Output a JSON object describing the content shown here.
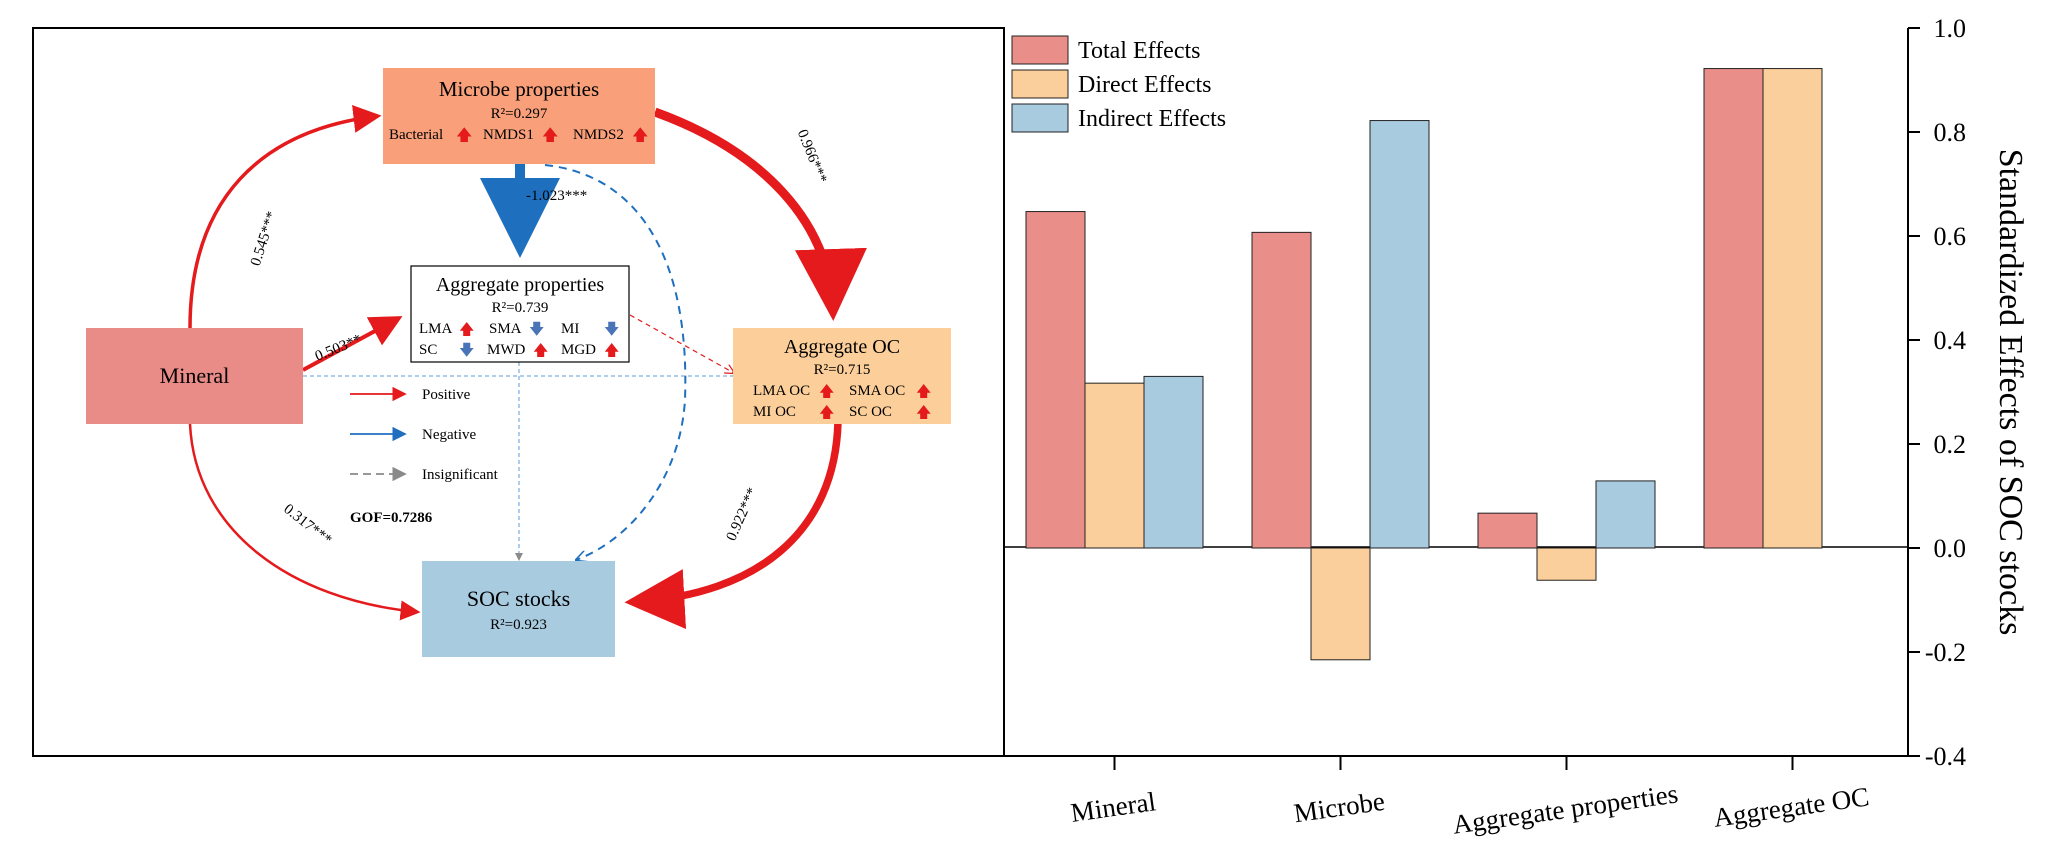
{
  "colors": {
    "positive": "#e41a1c",
    "negative": "#1f6fbf",
    "insignificant": "#8a8a8a",
    "up_arrow": "#e41a1c",
    "down_arrow": "#4a74b8",
    "mineral_box": "#e98b87",
    "microbe_box": "#f9a07a",
    "agg_oc_box": "#fccf9a",
    "soc_box": "#a9cbe0",
    "total": "#ea8e8a",
    "direct": "#fbcf9b",
    "indirect": "#a9cbe0"
  },
  "path_model": {
    "nodes": {
      "mineral": {
        "title": "Mineral"
      },
      "microbe": {
        "title": "Microbe properties",
        "r2": "R²=0.297",
        "vars": [
          {
            "label": "Bacterial",
            "dir": "up"
          },
          {
            "label": "NMDS1",
            "dir": "up"
          },
          {
            "label": "NMDS2",
            "dir": "up"
          }
        ]
      },
      "aggregate": {
        "title": "Aggregate properties",
        "r2": "R²=0.739",
        "vars": [
          {
            "label": "LMA",
            "dir": "up"
          },
          {
            "label": "SMA",
            "dir": "down"
          },
          {
            "label": "MI",
            "dir": "down"
          },
          {
            "label": "SC",
            "dir": "down"
          },
          {
            "label": "MWD",
            "dir": "up"
          },
          {
            "label": "MGD",
            "dir": "up"
          }
        ]
      },
      "agg_oc": {
        "title": "Aggregate OC",
        "r2": "R²=0.715",
        "vars": [
          {
            "label": "LMA OC",
            "dir": "up"
          },
          {
            "label": "SMA OC",
            "dir": "up"
          },
          {
            "label": "MI OC",
            "dir": "up"
          },
          {
            "label": "SC OC",
            "dir": "up"
          }
        ]
      },
      "soc": {
        "title": "SOC stocks",
        "r2": "R²=0.923"
      }
    },
    "paths": [
      {
        "from": "mineral",
        "to": "microbe",
        "coef": "0.545***",
        "sign": "positive"
      },
      {
        "from": "microbe",
        "to": "agg_oc",
        "coef": "0.966***",
        "sign": "positive"
      },
      {
        "from": "microbe",
        "to": "aggregate",
        "coef": "-1.023***",
        "sign": "negative"
      },
      {
        "from": "mineral",
        "to": "aggregate",
        "coef": "0.503**",
        "sign": "positive"
      },
      {
        "from": "agg_oc",
        "to": "soc",
        "coef": "0.922***",
        "sign": "positive"
      },
      {
        "from": "mineral",
        "to": "soc",
        "coef": "0.317***",
        "sign": "positive"
      }
    ],
    "legend": [
      {
        "label": "Positive",
        "kind": "positive"
      },
      {
        "label": "Negative",
        "kind": "negative"
      },
      {
        "label": "Insignificant",
        "kind": "insignificant"
      }
    ],
    "gof": "GOF=0.7286"
  },
  "chart_data": {
    "type": "bar",
    "categories": [
      "Mineral",
      "Microbe",
      "Aggregate properties",
      "Aggregate OC"
    ],
    "series": [
      {
        "name": "Total Effects",
        "values": [
          0.647,
          0.607,
          0.067,
          0.922
        ]
      },
      {
        "name": "Direct Effects",
        "values": [
          0.317,
          -0.215,
          -0.062,
          0.922
        ]
      },
      {
        "name": "Indirect Effects",
        "values": [
          0.33,
          0.822,
          0.129,
          null
        ]
      }
    ],
    "ylabel": "Standardized Effects of SOC stocks",
    "ylim": [
      -0.4,
      1.0
    ],
    "yticks": [
      "-0.4",
      "-0.2",
      "0.0",
      "0.2",
      "0.4",
      "0.6",
      "0.8",
      "1.0"
    ],
    "y_axis_side": "right",
    "legend_position": "top-left",
    "grid": false
  }
}
